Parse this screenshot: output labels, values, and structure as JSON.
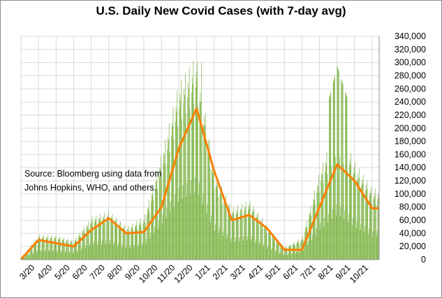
{
  "title": "U.S. Daily New Covid Cases (with 7-day avg)",
  "source_lines": [
    "Source:  Bloomberg using data from",
    "Johns Hopkins, WHO, and others."
  ],
  "colors": {
    "bars": "#70ad32",
    "avg_line": "#ff7f00",
    "grid": "#d9d9d9",
    "axis": "#8c8c8c"
  },
  "chart_data": {
    "type": "bar",
    "title": "U.S. Daily New Covid Cases (with 7-day avg)",
    "xlabel": "",
    "ylabel": "",
    "ylim": [
      0,
      340000
    ],
    "yticks": [
      0,
      20000,
      40000,
      60000,
      80000,
      100000,
      120000,
      140000,
      160000,
      180000,
      200000,
      220000,
      240000,
      260000,
      280000,
      300000,
      320000,
      340000
    ],
    "ytick_labels": [
      "0",
      "20,000",
      "40,000",
      "60,000",
      "80,000",
      "100,000",
      "120,000",
      "140,000",
      "160,000",
      "180,000",
      "200,000",
      "220,000",
      "240,000",
      "260,000",
      "280,000",
      "300,000",
      "320,000",
      "340,000"
    ],
    "xtick_labels": [
      "3/20",
      "4/20",
      "5/20",
      "6/20",
      "7/20",
      "8/20",
      "9/20",
      "10/20",
      "11/20",
      "12/20",
      "1/21",
      "2/21",
      "3/21",
      "4/21",
      "5/21",
      "6/21",
      "7/21",
      "8/21",
      "9/21",
      "10/21"
    ],
    "grid": true,
    "series": [
      {
        "kind": "bar",
        "note": "daily new cases",
        "x_months": [
          "3/20",
          "4/20",
          "5/20",
          "6/20",
          "7/20",
          "8/20",
          "9/20",
          "10/20",
          "11/20",
          "12/20",
          "1/21",
          "2/21",
          "3/21",
          "4/21",
          "5/21",
          "6/21",
          "7/21",
          "8/21",
          "9/21",
          "10/21",
          "10/21+"
        ],
        "monthly_avg_profile": [
          2000,
          28000,
          27000,
          22000,
          48000,
          55000,
          37000,
          48000,
          120000,
          200000,
          230000,
          100000,
          58000,
          67000,
          38000,
          14000,
          25000,
          100000,
          155000,
          110000,
          80000
        ],
        "peak_daily": 300000
      },
      {
        "kind": "line",
        "note": "7-day average",
        "x_months": [
          "3/20",
          "4/20",
          "5/20",
          "6/20",
          "7/20",
          "8/20",
          "9/20",
          "10/20",
          "11/20",
          "12/20",
          "1/21",
          "2/21",
          "3/21",
          "4/21",
          "5/21",
          "6/21",
          "7/21",
          "8/21",
          "9/21",
          "10/21",
          "10/21+"
        ],
        "values": [
          500,
          30000,
          25000,
          20000,
          45000,
          63000,
          40000,
          42000,
          80000,
          170000,
          230000,
          135000,
          60000,
          68000,
          48000,
          15000,
          15000,
          80000,
          145000,
          120000,
          78000
        ]
      }
    ]
  }
}
